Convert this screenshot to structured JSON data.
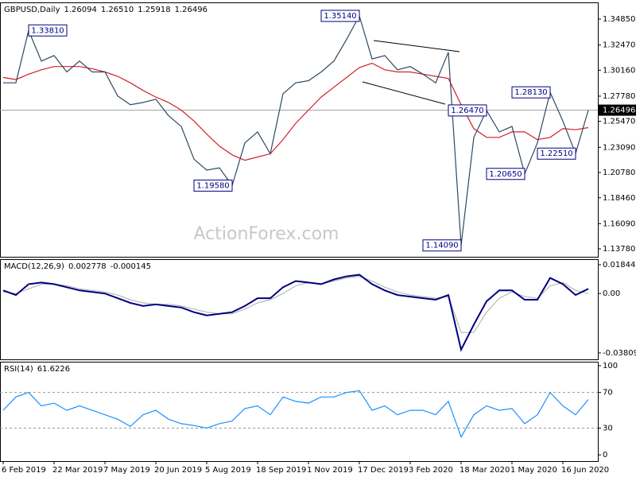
{
  "chart_data": [
    {
      "type": "line",
      "title": "GBPUSD,Daily",
      "quote": [
        {
          "value": 1.26094,
          "label": "1.26094"
        },
        {
          "value": 1.2651,
          "label": "1.26510"
        },
        {
          "value": 1.25918,
          "label": "1.25918"
        },
        {
          "value": 1.26496,
          "label": "1.26496"
        }
      ],
      "watermark": "ActionForex.com",
      "categories": [
        "6 Feb 2019",
        null,
        null,
        null,
        "22 Mar 2019",
        null,
        null,
        null,
        "7 May 2019",
        null,
        null,
        null,
        "20 Jun 2019",
        null,
        null,
        null,
        "5 Aug 2019",
        null,
        null,
        null,
        "18 Sep 2019",
        null,
        null,
        null,
        "1 Nov 2019",
        null,
        null,
        null,
        "17 Dec 2019",
        null,
        null,
        null,
        "3 Feb 2020",
        null,
        null,
        null,
        "18 Mar 2020",
        null,
        null,
        null,
        "1 May 2020",
        null,
        null,
        null,
        "16 Jun 2020",
        null,
        null
      ],
      "series": [
        {
          "color": "#2c4a60",
          "values": [
            1.29,
            1.29,
            1.3381,
            1.31,
            1.315,
            1.3,
            1.31,
            1.3,
            1.3,
            1.278,
            1.27,
            1.272,
            1.275,
            1.26,
            1.25,
            1.22,
            1.21,
            1.212,
            1.1958,
            1.235,
            1.245,
            1.225,
            1.28,
            1.29,
            1.292,
            1.3,
            1.31,
            1.33,
            1.3514,
            1.312,
            1.315,
            1.302,
            1.305,
            1.298,
            1.29,
            1.318,
            1.1409,
            1.24,
            1.2647,
            1.245,
            1.25,
            1.2065,
            1.235,
            1.2813,
            1.255,
            1.2251,
            1.265
          ]
        },
        {
          "color": "#d0202a",
          "values": [
            1.295,
            1.293,
            1.298,
            1.302,
            1.305,
            1.305,
            1.305,
            1.303,
            1.3,
            1.296,
            1.29,
            1.283,
            1.277,
            1.272,
            1.265,
            1.255,
            1.243,
            1.232,
            1.224,
            1.219,
            1.222,
            1.225,
            1.238,
            1.253,
            1.265,
            1.277,
            1.286,
            1.295,
            1.304,
            1.308,
            1.302,
            1.3,
            1.3,
            1.298,
            1.296,
            1.294,
            1.27,
            1.248,
            1.24,
            1.24,
            1.245,
            1.245,
            1.238,
            1.24,
            1.248,
            1.247,
            1.249
          ]
        }
      ],
      "annotations": [
        {
          "value": 1.3381,
          "label": "1.33810"
        },
        {
          "value": 1.3514,
          "label": "1.35140"
        },
        {
          "value": 1.1958,
          "label": "1.19580"
        },
        {
          "value": 1.1409,
          "label": "1.14090"
        },
        {
          "value": 1.2647,
          "label": "1.26470"
        },
        {
          "value": 1.2813,
          "label": "1.28130"
        },
        {
          "value": 1.2251,
          "label": "1.22510"
        },
        {
          "value": 1.2065,
          "label": "1.20650"
        }
      ],
      "last_price": {
        "value": 1.26496,
        "label": "1.26496"
      },
      "ylim": [
        1.1305,
        1.3638
      ],
      "yticks": [
        {
          "value": 1.3485,
          "label": "1.34850"
        },
        {
          "value": 1.3247,
          "label": "1.32470"
        },
        {
          "value": 1.3016,
          "label": "1.30160"
        },
        {
          "value": 1.2778,
          "label": "1.27780"
        },
        {
          "value": 1.2547,
          "label": "1.25470"
        },
        {
          "value": 1.2309,
          "label": "1.23090"
        },
        {
          "value": 1.2078,
          "label": "1.20780"
        },
        {
          "value": 1.1846,
          "label": "1.18460"
        },
        {
          "value": 1.1609,
          "label": "1.16090"
        },
        {
          "value": 1.1378,
          "label": "1.13780"
        }
      ]
    },
    {
      "type": "line",
      "title": "MACD(12,26,9)",
      "readout": [
        0.002778,
        -0.000145
      ],
      "series": [
        {
          "color": "#000080",
          "values": [
            0.002,
            -0.001,
            0.006,
            0.007,
            0.006,
            0.004,
            0.002,
            0.001,
            0.0,
            -0.003,
            -0.006,
            -0.008,
            -0.007,
            -0.008,
            -0.009,
            -0.012,
            -0.014,
            -0.013,
            -0.012,
            -0.008,
            -0.003,
            -0.003,
            0.004,
            0.008,
            0.007,
            0.006,
            0.009,
            0.011,
            0.012,
            0.006,
            0.002,
            -0.001,
            -0.002,
            -0.003,
            -0.004,
            -0.001,
            -0.036,
            -0.02,
            -0.005,
            0.002,
            0.002,
            -0.004,
            -0.004,
            0.01,
            0.006,
            -0.001,
            0.003
          ]
        },
        {
          "color": "#b8b8b8",
          "values": [
            0.001,
            0.0,
            0.003,
            0.006,
            0.006,
            0.005,
            0.003,
            0.002,
            0.001,
            -0.001,
            -0.004,
            -0.006,
            -0.007,
            -0.007,
            -0.008,
            -0.01,
            -0.012,
            -0.013,
            -0.013,
            -0.01,
            -0.006,
            -0.004,
            0.0,
            0.005,
            0.007,
            0.006,
            0.008,
            0.01,
            0.011,
            0.008,
            0.004,
            0.001,
            -0.001,
            -0.002,
            -0.003,
            -0.002,
            -0.025,
            -0.025,
            -0.012,
            -0.003,
            0.001,
            -0.002,
            -0.003,
            0.005,
            0.007,
            0.002,
            0.0
          ]
        }
      ],
      "ylim": [
        -0.0422,
        0.022
      ],
      "yticks": [
        0.018442,
        {
          "value": 0,
          "label": "0.00"
        },
        -0.038095
      ]
    },
    {
      "type": "line",
      "title": "RSI(14)",
      "readout": [
        61.6226
      ],
      "series": [
        {
          "color": "#1e90ff",
          "values": [
            50,
            65,
            70,
            55,
            58,
            50,
            55,
            50,
            45,
            40,
            32,
            45,
            50,
            40,
            35,
            33,
            30,
            35,
            38,
            52,
            55,
            45,
            65,
            60,
            58,
            65,
            65,
            70,
            72,
            50,
            55,
            45,
            50,
            50,
            45,
            60,
            20,
            45,
            55,
            50,
            52,
            35,
            45,
            70,
            55,
            45,
            62
          ]
        }
      ],
      "dashed_lines": [
        70,
        30
      ],
      "ylim": [
        -7,
        104.5
      ],
      "yticks": [
        100,
        70,
        30,
        0
      ]
    }
  ]
}
